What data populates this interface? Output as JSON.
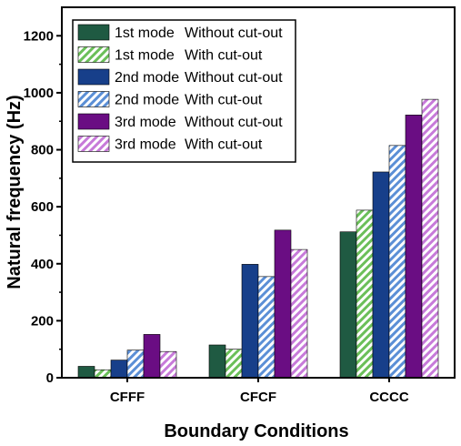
{
  "chart_data": {
    "type": "bar",
    "xlabel": "Boundary Conditions",
    "ylabel": "Natural frequency (Hz)",
    "categories": [
      "CFFF",
      "CFCF",
      "CCCC"
    ],
    "ylim": [
      0,
      1300
    ],
    "yticks": [
      0,
      200,
      400,
      600,
      800,
      1000,
      1200
    ],
    "grid": false,
    "legend_position": "top-left",
    "series": [
      {
        "name": "1st mode Without cut-out",
        "mode": "1st mode",
        "variant": "Without cut-out",
        "color": "#1f5a42",
        "hatched": false,
        "values": [
          40,
          115,
          512
        ]
      },
      {
        "name": "1st mode With cut-out",
        "mode": "1st mode",
        "variant": "With cut-out",
        "color": "#6bbf59",
        "hatched": true,
        "values": [
          28,
          100,
          588
        ]
      },
      {
        "name": "2nd mode Without cut-out",
        "mode": "2nd mode",
        "variant": "Without cut-out",
        "color": "#173f8a",
        "hatched": false,
        "values": [
          62,
          398,
          722
        ]
      },
      {
        "name": "2nd mode With cut-out",
        "mode": "2nd mode",
        "variant": "With cut-out",
        "color": "#5b8fd6",
        "hatched": true,
        "values": [
          97,
          355,
          815
        ]
      },
      {
        "name": "3rd mode Without cut-out",
        "mode": "3rd mode",
        "variant": "Without cut-out",
        "color": "#6a0d83",
        "hatched": false,
        "values": [
          152,
          518,
          922
        ]
      },
      {
        "name": "3rd mode With cut-out",
        "mode": "3rd mode",
        "variant": "With cut-out",
        "color": "#c77ad9",
        "hatched": true,
        "values": [
          92,
          450,
          977
        ]
      }
    ]
  }
}
